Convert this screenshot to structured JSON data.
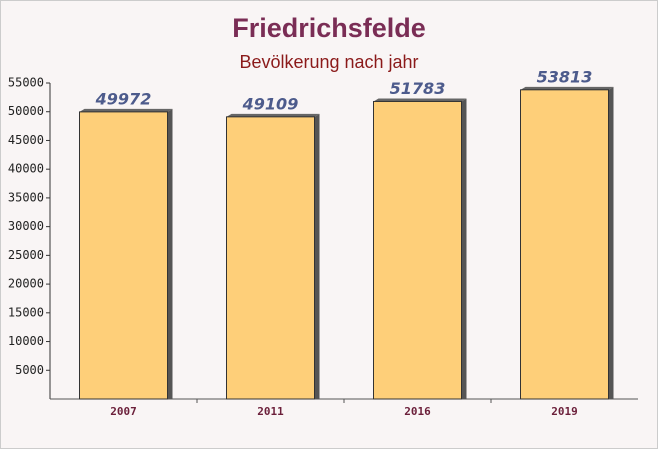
{
  "chart_data": {
    "type": "bar",
    "title": "Friedrichsfelde",
    "subtitle": "Bevölkerung nach jahr",
    "categories": [
      "2007",
      "2011",
      "2016",
      "2019"
    ],
    "values": [
      49972,
      49109,
      51783,
      53813
    ],
    "color": "#fecb6e",
    "ylim": [
      0,
      55000
    ],
    "yticks": [
      5000,
      10000,
      15000,
      20000,
      25000,
      30000,
      35000,
      40000,
      45000,
      50000,
      55000
    ]
  }
}
